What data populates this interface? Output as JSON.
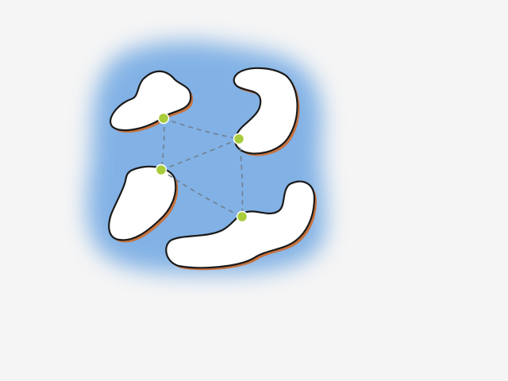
{
  "colors": {
    "background": "#f5f5f5",
    "water": "#4a90d9",
    "shore": "#c8733f",
    "outline": "#1a1a1a",
    "link": "#6f7f8f",
    "node": "#a8cc3c"
  },
  "islands": [
    {
      "name": "island-top-left"
    },
    {
      "name": "island-top-right"
    },
    {
      "name": "island-left"
    },
    {
      "name": "island-bottom"
    }
  ],
  "nodes": [
    {
      "name": "node-top-left"
    },
    {
      "name": "node-top-right"
    },
    {
      "name": "node-left"
    },
    {
      "name": "node-bottom"
    }
  ],
  "links": [
    {
      "from": 0,
      "to": 1
    },
    {
      "from": 0,
      "to": 2
    },
    {
      "from": 1,
      "to": 2
    },
    {
      "from": 1,
      "to": 3
    },
    {
      "from": 2,
      "to": 3
    }
  ]
}
